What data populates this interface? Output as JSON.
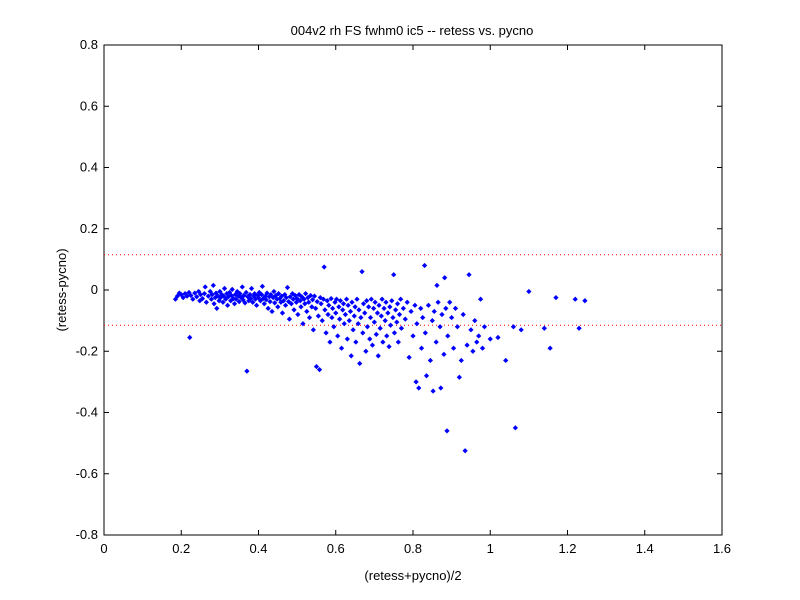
{
  "chart_data": {
    "type": "scatter",
    "title": "004v2 rh FS fwhm0 ic5 -- retess vs. pycno",
    "xlabel": "(retess+pycno)/2",
    "ylabel": "(retess-pycno)",
    "xlim": [
      0,
      1.6
    ],
    "ylim": [
      -0.8,
      0.8
    ],
    "xticks": [
      "0",
      "0.2",
      "0.4",
      "0.6",
      "0.8",
      "1",
      "1.2",
      "1.4",
      "1.6"
    ],
    "yticks": [
      "-0.8",
      "-0.6",
      "-0.4",
      "-0.2",
      "0",
      "0.2",
      "0.4",
      "0.6",
      "0.8"
    ],
    "grid": false,
    "marker_color": "#0000ff",
    "reference_line_color": "#ff0000",
    "reference_lines": [
      0.115,
      -0.115
    ],
    "series": [
      {
        "points": [
          [
            0.185,
            -0.03
          ],
          [
            0.19,
            -0.02
          ],
          [
            0.195,
            -0.01
          ],
          [
            0.2,
            -0.015
          ],
          [
            0.205,
            -0.025
          ],
          [
            0.21,
            -0.012
          ],
          [
            0.215,
            -0.02
          ],
          [
            0.22,
            -0.008
          ],
          [
            0.222,
            -0.155
          ],
          [
            0.225,
            -0.018
          ],
          [
            0.23,
            -0.03
          ],
          [
            0.235,
            -0.01
          ],
          [
            0.24,
            -0.022
          ],
          [
            0.245,
            -0.005
          ],
          [
            0.248,
            -0.035
          ],
          [
            0.25,
            -0.015
          ],
          [
            0.255,
            -0.028
          ],
          [
            0.26,
            -0.012
          ],
          [
            0.262,
            0.01
          ],
          [
            0.265,
            -0.04
          ],
          [
            0.27,
            -0.02
          ],
          [
            0.275,
            -0.005
          ],
          [
            0.278,
            -0.03
          ],
          [
            0.28,
            -0.015
          ],
          [
            0.283,
            0.015
          ],
          [
            0.285,
            -0.045
          ],
          [
            0.288,
            -0.025
          ],
          [
            0.29,
            -0.01
          ],
          [
            0.292,
            -0.06
          ],
          [
            0.295,
            -0.02
          ],
          [
            0.298,
            -0.035
          ],
          [
            0.3,
            -0.005
          ],
          [
            0.302,
            -0.025
          ],
          [
            0.305,
            -0.015
          ],
          [
            0.308,
            -0.04
          ],
          [
            0.31,
            -0.02
          ],
          [
            0.312,
            0.005
          ],
          [
            0.315,
            -0.03
          ],
          [
            0.318,
            -0.012
          ],
          [
            0.32,
            -0.05
          ],
          [
            0.322,
            -0.022
          ],
          [
            0.325,
            -0.008
          ],
          [
            0.328,
            -0.035
          ],
          [
            0.33,
            -0.018
          ],
          [
            0.332,
            0.002
          ],
          [
            0.335,
            -0.028
          ],
          [
            0.338,
            -0.045
          ],
          [
            0.34,
            -0.015
          ],
          [
            0.342,
            -0.03
          ],
          [
            0.345,
            -0.005
          ],
          [
            0.348,
            -0.02
          ],
          [
            0.35,
            -0.038
          ],
          [
            0.352,
            -0.012
          ],
          [
            0.355,
            -0.025
          ],
          [
            0.358,
            0.01
          ],
          [
            0.36,
            -0.032
          ],
          [
            0.362,
            -0.018
          ],
          [
            0.365,
            -0.042
          ],
          [
            0.368,
            -0.008
          ],
          [
            0.37,
            -0.265
          ],
          [
            0.372,
            -0.022
          ],
          [
            0.375,
            -0.035
          ],
          [
            0.378,
            -0.015
          ],
          [
            0.38,
            -0.028
          ],
          [
            0.382,
            0.005
          ],
          [
            0.385,
            -0.04
          ],
          [
            0.388,
            -0.02
          ],
          [
            0.39,
            -0.012
          ],
          [
            0.392,
            -0.03
          ],
          [
            0.395,
            -0.05
          ],
          [
            0.398,
            -0.018
          ],
          [
            0.4,
            -0.025
          ],
          [
            0.402,
            -0.008
          ],
          [
            0.405,
            -0.035
          ],
          [
            0.408,
            -0.015
          ],
          [
            0.41,
            0.012
          ],
          [
            0.412,
            -0.028
          ],
          [
            0.415,
            -0.045
          ],
          [
            0.418,
            -0.02
          ],
          [
            0.42,
            -0.032
          ],
          [
            0.422,
            -0.01
          ],
          [
            0.425,
            -0.06
          ],
          [
            0.428,
            -0.022
          ],
          [
            0.43,
            -0.038
          ],
          [
            0.432,
            -0.015
          ],
          [
            0.435,
            -0.07
          ],
          [
            0.438,
            -0.025
          ],
          [
            0.44,
            -0.005
          ],
          [
            0.442,
            -0.042
          ],
          [
            0.445,
            -0.018
          ],
          [
            0.448,
            -0.03
          ],
          [
            0.45,
            -0.055
          ],
          [
            0.452,
            -0.012
          ],
          [
            0.455,
            -0.028
          ],
          [
            0.458,
            -0.04
          ],
          [
            0.46,
            -0.02
          ],
          [
            0.462,
            -0.075
          ],
          [
            0.465,
            -0.035
          ],
          [
            0.468,
            -0.015
          ],
          [
            0.47,
            -0.05
          ],
          [
            0.472,
            -0.025
          ],
          [
            0.475,
            0.008
          ],
          [
            0.478,
            -0.038
          ],
          [
            0.48,
            -0.095
          ],
          [
            0.482,
            -0.022
          ],
          [
            0.485,
            -0.045
          ],
          [
            0.488,
            -0.012
          ],
          [
            0.49,
            -0.03
          ],
          [
            0.492,
            -0.065
          ],
          [
            0.495,
            -0.018
          ],
          [
            0.498,
            -0.04
          ],
          [
            0.5,
            -0.028
          ],
          [
            0.502,
            -0.08
          ],
          [
            0.505,
            -0.015
          ],
          [
            0.508,
            -0.035
          ],
          [
            0.51,
            -0.055
          ],
          [
            0.512,
            -0.022
          ],
          [
            0.515,
            -0.11
          ],
          [
            0.518,
            -0.03
          ],
          [
            0.52,
            -0.045
          ],
          [
            0.522,
            -0.012
          ],
          [
            0.525,
            -0.07
          ],
          [
            0.528,
            -0.025
          ],
          [
            0.53,
            -0.04
          ],
          [
            0.532,
            -0.09
          ],
          [
            0.535,
            -0.018
          ],
          [
            0.538,
            -0.055
          ],
          [
            0.54,
            -0.032
          ],
          [
            0.542,
            -0.13
          ],
          [
            0.545,
            -0.02
          ],
          [
            0.548,
            -0.06
          ],
          [
            0.55,
            -0.25
          ],
          [
            0.552,
            -0.038
          ],
          [
            0.555,
            -0.085
          ],
          [
            0.558,
            -0.26
          ],
          [
            0.56,
            -0.025
          ],
          [
            0.562,
            -0.045
          ],
          [
            0.565,
            -0.1
          ],
          [
            0.568,
            -0.03
          ],
          [
            0.57,
            0.075
          ],
          [
            0.572,
            -0.065
          ],
          [
            0.575,
            -0.14
          ],
          [
            0.578,
            -0.035
          ],
          [
            0.58,
            -0.08
          ],
          [
            0.582,
            -0.05
          ],
          [
            0.585,
            -0.17
          ],
          [
            0.588,
            -0.028
          ],
          [
            0.59,
            -0.09
          ],
          [
            0.592,
            -0.06
          ],
          [
            0.595,
            -0.12
          ],
          [
            0.598,
            -0.04
          ],
          [
            0.6,
            -0.075
          ],
          [
            0.602,
            -0.03
          ],
          [
            0.605,
            -0.15
          ],
          [
            0.608,
            -0.055
          ],
          [
            0.61,
            -0.095
          ],
          [
            0.612,
            -0.035
          ],
          [
            0.615,
            -0.19
          ],
          [
            0.618,
            -0.065
          ],
          [
            0.62,
            -0.045
          ],
          [
            0.622,
            -0.11
          ],
          [
            0.625,
            -0.08
          ],
          [
            0.628,
            -0.03
          ],
          [
            0.63,
            -0.16
          ],
          [
            0.632,
            -0.05
          ],
          [
            0.635,
            -0.1
          ],
          [
            0.638,
            -0.07
          ],
          [
            0.64,
            -0.215
          ],
          [
            0.642,
            -0.04
          ],
          [
            0.645,
            -0.13
          ],
          [
            0.648,
            -0.085
          ],
          [
            0.65,
            -0.055
          ],
          [
            0.652,
            -0.17
          ],
          [
            0.655,
            -0.03
          ],
          [
            0.658,
            -0.11
          ],
          [
            0.66,
            -0.065
          ],
          [
            0.662,
            -0.24
          ],
          [
            0.665,
            -0.09
          ],
          [
            0.668,
            0.06
          ],
          [
            0.67,
            -0.14
          ],
          [
            0.672,
            -0.045
          ],
          [
            0.675,
            -0.075
          ],
          [
            0.678,
            -0.2
          ],
          [
            0.68,
            -0.035
          ],
          [
            0.682,
            -0.12
          ],
          [
            0.685,
            -0.055
          ],
          [
            0.688,
            -0.16
          ],
          [
            0.69,
            -0.09
          ],
          [
            0.692,
            -0.03
          ],
          [
            0.695,
            -0.18
          ],
          [
            0.698,
            -0.06
          ],
          [
            0.7,
            -0.105
          ],
          [
            0.702,
            -0.04
          ],
          [
            0.705,
            -0.145
          ],
          [
            0.708,
            -0.075
          ],
          [
            0.71,
            -0.215
          ],
          [
            0.712,
            -0.05
          ],
          [
            0.715,
            -0.125
          ],
          [
            0.718,
            -0.085
          ],
          [
            0.72,
            -0.03
          ],
          [
            0.722,
            -0.17
          ],
          [
            0.725,
            -0.06
          ],
          [
            0.728,
            -0.1
          ],
          [
            0.73,
            -0.04
          ],
          [
            0.732,
            -0.15
          ],
          [
            0.735,
            -0.075
          ],
          [
            0.738,
            -0.185
          ],
          [
            0.74,
            -0.055
          ],
          [
            0.742,
            -0.115
          ],
          [
            0.745,
            -0.035
          ],
          [
            0.748,
            -0.09
          ],
          [
            0.75,
            0.05
          ],
          [
            0.752,
            -0.14
          ],
          [
            0.755,
            -0.065
          ],
          [
            0.758,
            -0.105
          ],
          [
            0.76,
            -0.045
          ],
          [
            0.762,
            -0.17
          ],
          [
            0.765,
            -0.08
          ],
          [
            0.768,
            -0.03
          ],
          [
            0.77,
            -0.125
          ],
          [
            0.775,
            -0.06
          ],
          [
            0.78,
            -0.095
          ],
          [
            0.785,
            -0.04
          ],
          [
            0.79,
            -0.22
          ],
          [
            0.795,
            -0.07
          ],
          [
            0.8,
            -0.15
          ],
          [
            0.805,
            -0.05
          ],
          [
            0.808,
            -0.3
          ],
          [
            0.81,
            -0.11
          ],
          [
            0.815,
            -0.32
          ],
          [
            0.82,
            -0.06
          ],
          [
            0.822,
            -0.19
          ],
          [
            0.825,
            -0.09
          ],
          [
            0.83,
            0.08
          ],
          [
            0.832,
            -0.14
          ],
          [
            0.835,
            -0.28
          ],
          [
            0.84,
            -0.05
          ],
          [
            0.845,
            -0.23
          ],
          [
            0.85,
            -0.1
          ],
          [
            0.852,
            -0.33
          ],
          [
            0.855,
            -0.07
          ],
          [
            0.86,
            -0.17
          ],
          [
            0.862,
            0.015
          ],
          [
            0.865,
            -0.04
          ],
          [
            0.87,
            -0.12
          ],
          [
            0.872,
            -0.32
          ],
          [
            0.875,
            -0.08
          ],
          [
            0.88,
            -0.21
          ],
          [
            0.882,
            0.04
          ],
          [
            0.885,
            -0.06
          ],
          [
            0.888,
            -0.46
          ],
          [
            0.89,
            -0.15
          ],
          [
            0.895,
            -0.04
          ],
          [
            0.9,
            -0.09
          ],
          [
            0.905,
            -0.19
          ],
          [
            0.91,
            -0.06
          ],
          [
            0.915,
            -0.12
          ],
          [
            0.92,
            -0.285
          ],
          [
            0.925,
            -0.23
          ],
          [
            0.93,
            -0.08
          ],
          [
            0.935,
            -0.525
          ],
          [
            0.94,
            -0.18
          ],
          [
            0.945,
            0.05
          ],
          [
            0.95,
            -0.13
          ],
          [
            0.955,
            -0.2
          ],
          [
            0.96,
            -0.1
          ],
          [
            0.965,
            -0.17
          ],
          [
            0.97,
            -0.15
          ],
          [
            0.975,
            -0.03
          ],
          [
            0.98,
            -0.19
          ],
          [
            0.985,
            -0.12
          ],
          [
            1.0,
            -0.16
          ],
          [
            1.02,
            -0.155
          ],
          [
            1.04,
            -0.23
          ],
          [
            1.06,
            -0.12
          ],
          [
            1.065,
            -0.45
          ],
          [
            1.08,
            -0.13
          ],
          [
            1.1,
            -0.005
          ],
          [
            1.14,
            -0.125
          ],
          [
            1.155,
            -0.19
          ],
          [
            1.17,
            -0.025
          ],
          [
            1.22,
            -0.03
          ],
          [
            1.23,
            -0.125
          ],
          [
            1.245,
            -0.035
          ]
        ]
      }
    ]
  }
}
